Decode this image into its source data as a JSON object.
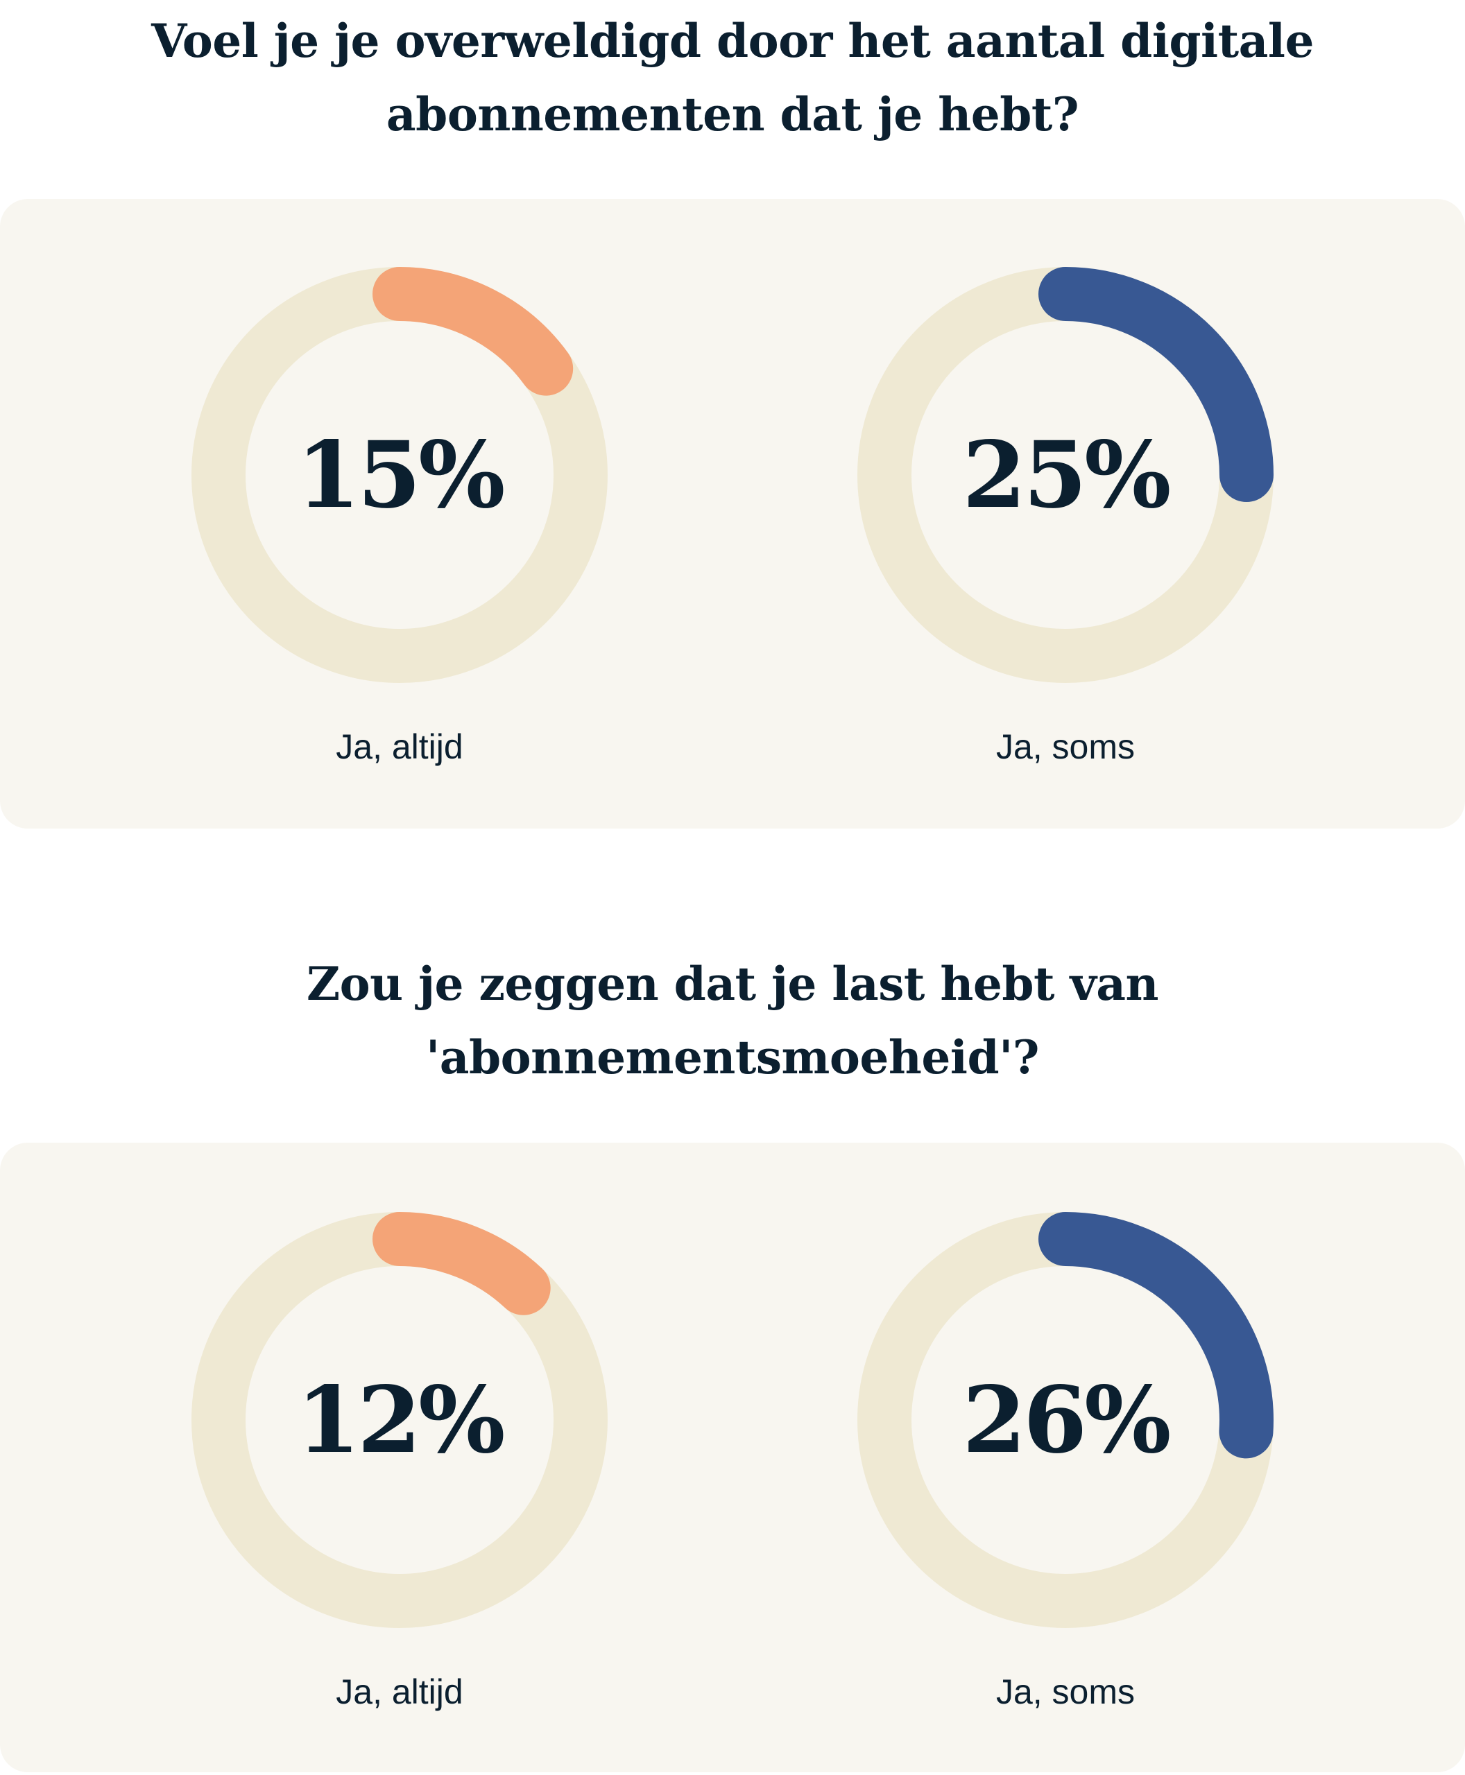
{
  "colors": {
    "track": "#efe9d3",
    "orange": "#f4a477",
    "blue": "#385893",
    "text": "#0b1f2f",
    "card": "#f8f6f0"
  },
  "sections": [
    {
      "title_lines": [
        "Voel je je overweldigd door het aantal digitale",
        "abonnementen dat je hebt?"
      ]
    },
    {
      "title_lines": [
        "Zou je zeggen dat je last hebt van",
        "'abonnementsmoeheid'?"
      ]
    }
  ],
  "chart_data": [
    {
      "type": "pie",
      "title": "Voel je je overweldigd door het aantal digitale abonnementen dat je hebt?",
      "categories": [
        "Ja, altijd",
        "Ja, soms"
      ],
      "values": [
        15,
        25
      ],
      "value_labels": [
        "15%",
        "25%"
      ],
      "colors": [
        "#f4a477",
        "#385893"
      ]
    },
    {
      "type": "pie",
      "title": "Zou je zeggen dat je last hebt van 'abonnementsmoeheid'?",
      "categories": [
        "Ja, altijd",
        "Ja, soms"
      ],
      "values": [
        12,
        26
      ],
      "value_labels": [
        "12%",
        "26%"
      ],
      "colors": [
        "#f4a477",
        "#385893"
      ]
    }
  ]
}
